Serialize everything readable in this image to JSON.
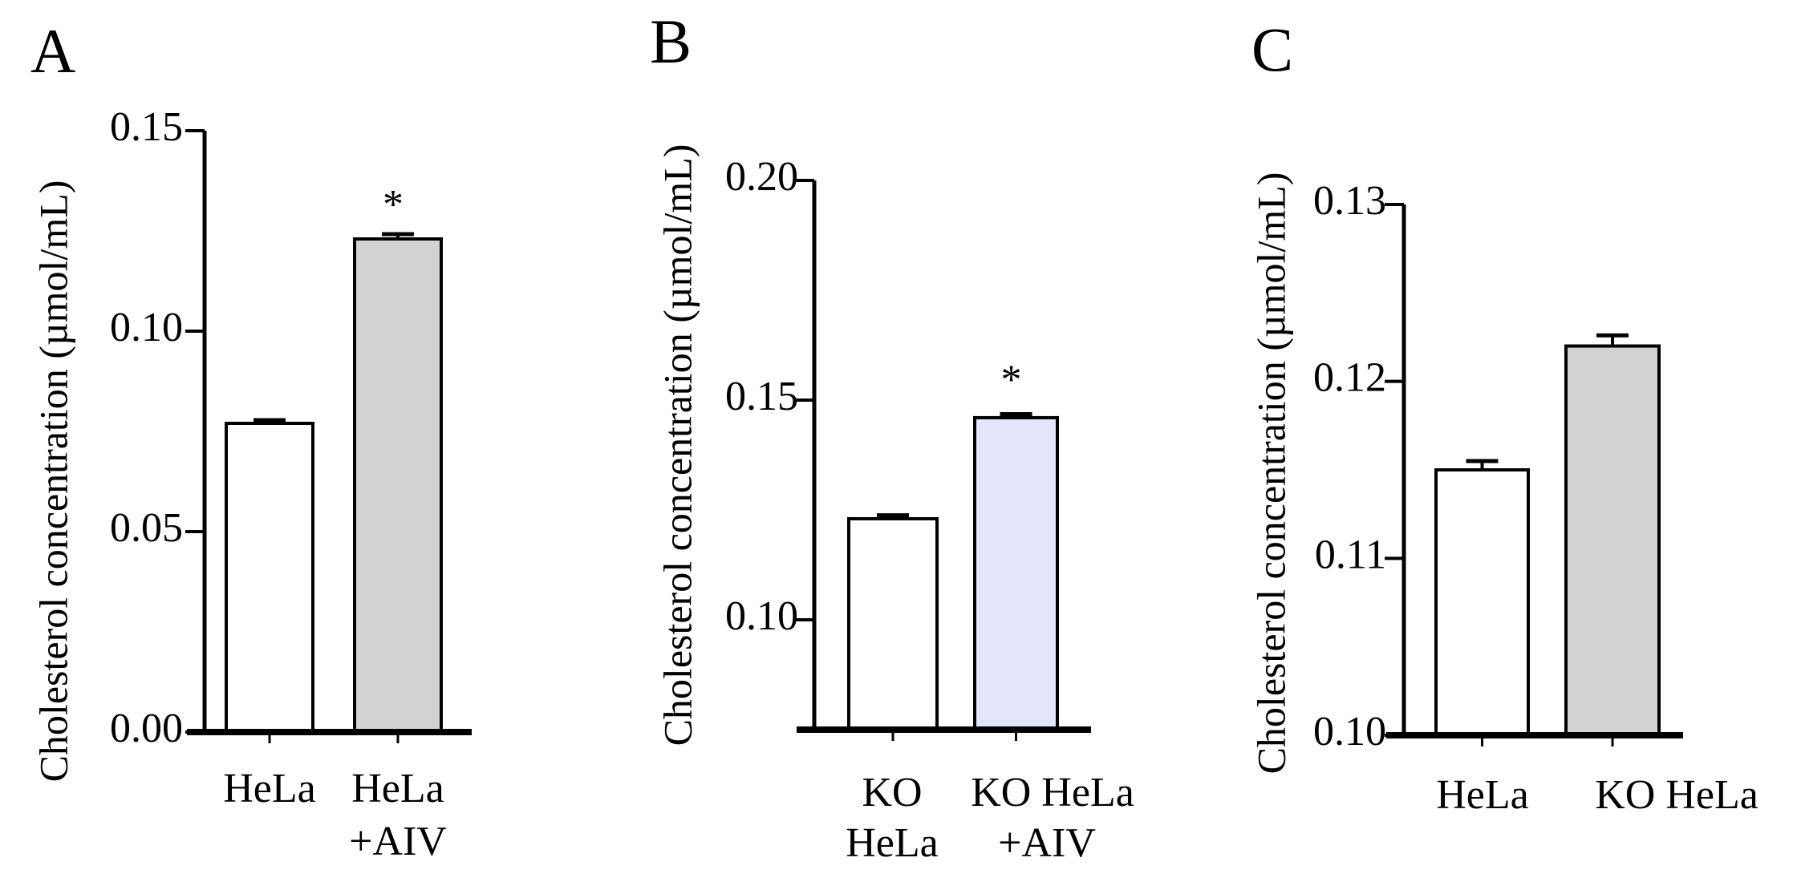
{
  "figure": {
    "description_free": true
  },
  "chart_data": [
    {
      "panel": "A",
      "type": "bar",
      "ylabel": "Cholesterol concentration (µmol/mL)",
      "ylim": [
        0,
        0.15
      ],
      "yticks": [
        0.0,
        0.05,
        0.1,
        0.15
      ],
      "ytick_labels": [
        "0.00",
        "0.05",
        "0.10",
        "0.15"
      ],
      "categories": [
        [
          "HeLa"
        ],
        [
          "HeLa",
          "+AIV"
        ]
      ],
      "values": [
        0.077,
        0.123
      ],
      "errors": [
        0.0008,
        0.0012
      ],
      "significance": [
        "",
        "*"
      ],
      "fill_colors": [
        "#ffffff",
        "#d3d3d3"
      ]
    },
    {
      "panel": "B",
      "type": "bar",
      "ylabel": "Cholesterol concentration (µmol/mL)",
      "ylim": [
        0.075,
        0.2
      ],
      "yticks": [
        0.1,
        0.15,
        0.2
      ],
      "ytick_labels": [
        "0.10",
        "0.15",
        "0.20"
      ],
      "categories": [
        [
          "KO",
          "HeLa"
        ],
        [
          "KO HeLa",
          "+AIV"
        ]
      ],
      "values": [
        0.123,
        0.146
      ],
      "errors": [
        0.0008,
        0.0008
      ],
      "significance": [
        "",
        "*"
      ],
      "fill_colors": [
        "#ffffff",
        "#e4e4fb"
      ]
    },
    {
      "panel": "C",
      "type": "bar",
      "ylabel": "Cholesterol concentration (µmol/mL)",
      "ylim": [
        0.1,
        0.13
      ],
      "yticks": [
        0.1,
        0.11,
        0.12,
        0.13
      ],
      "ytick_labels": [
        "0.10",
        "0.11",
        "0.12",
        "0.13"
      ],
      "categories": [
        [
          "HeLa"
        ],
        [
          "KO HeLa"
        ]
      ],
      "values": [
        0.115,
        0.122
      ],
      "errors": [
        0.0005,
        0.0006
      ],
      "significance": [
        "",
        ""
      ],
      "fill_colors": [
        "#ffffff",
        "#d3d3d3"
      ]
    }
  ]
}
